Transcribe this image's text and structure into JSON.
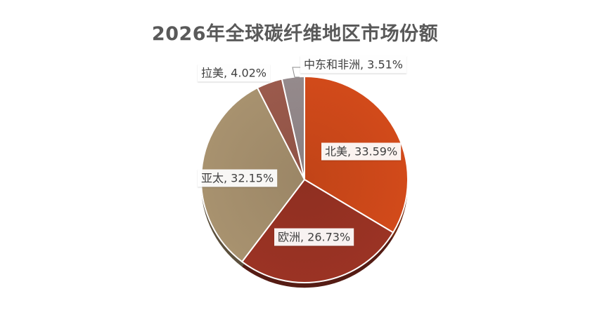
{
  "chart_data": {
    "type": "pie",
    "title": "2026年全球碳纤维地区市场份额",
    "legend": "none",
    "slices": [
      {
        "name": "北美",
        "value": 33.59,
        "label": "北美, 33.59%",
        "color": "#D24A1A"
      },
      {
        "name": "欧洲",
        "value": 26.73,
        "label": "欧洲, 26.73%",
        "color": "#9B3324"
      },
      {
        "name": "亚太",
        "value": 32.15,
        "label": "亚太, 32.15%",
        "color": "#A8926F"
      },
      {
        "name": "拉美",
        "value": 4.02,
        "label": "拉美, 4.02%",
        "color": "#9B5A4C"
      },
      {
        "name": "中东和非洲",
        "value": 3.51,
        "label": "中东和非洲, 3.51%",
        "color": "#958A8C"
      }
    ]
  }
}
